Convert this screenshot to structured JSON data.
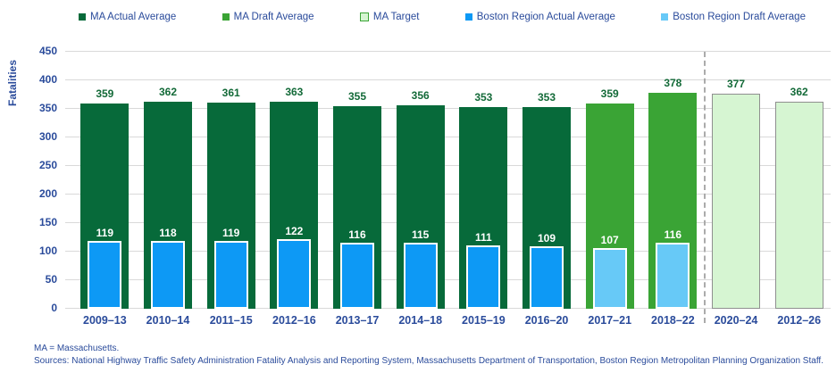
{
  "colors": {
    "ma_actual": "#076A3A",
    "ma_draft": "#3AA435",
    "ma_target_fill": "#D6F5D2",
    "ma_target_border": "#8F8F8F",
    "boston_actual": "#0D99F5",
    "boston_draft": "#67C9F7",
    "axis_text": "#2A4B9B",
    "ma_label_text": "#136A38",
    "boston_label_text": "#FFFFFF",
    "gridline": "#D9D9D9",
    "divider": "#ABABAB"
  },
  "legend": {
    "items": [
      {
        "label": "MA Actual Average",
        "swatch": "ma_actual"
      },
      {
        "label": "MA Draft Average",
        "swatch": "ma_draft"
      },
      {
        "label": "MA Target",
        "swatch": "ma_target"
      },
      {
        "label": "Boston Region Actual Average",
        "swatch": "boston_actual"
      },
      {
        "label": "Boston Region Draft Average",
        "swatch": "boston_draft"
      }
    ]
  },
  "chart_data": {
    "type": "bar",
    "title": "",
    "ylabel": "Fatalities",
    "xlabel": "",
    "ylim": [
      0,
      450
    ],
    "ytick_step": 50,
    "grid": true,
    "legend_position": "top",
    "categories": [
      "2009–13",
      "2010–14",
      "2011–15",
      "2012–16",
      "2013–17",
      "2014–18",
      "2015–19",
      "2016–20",
      "2017–21",
      "2018–22",
      "2020–24",
      "2012–26"
    ],
    "series": [
      {
        "name": "MA Average",
        "values": [
          359,
          362,
          361,
          363,
          355,
          356,
          353,
          353,
          359,
          378,
          377,
          362
        ],
        "bar_styles": [
          "actual",
          "actual",
          "actual",
          "actual",
          "actual",
          "actual",
          "actual",
          "actual",
          "draft",
          "draft",
          "target",
          "target"
        ]
      },
      {
        "name": "Boston Region Average",
        "values": [
          119,
          118,
          119,
          122,
          116,
          115,
          111,
          109,
          107,
          116,
          null,
          null
        ],
        "bar_styles": [
          "actual",
          "actual",
          "actual",
          "actual",
          "actual",
          "actual",
          "actual",
          "actual",
          "draft",
          "draft",
          null,
          null
        ]
      }
    ],
    "divider_after_category": "2018–22"
  },
  "footnotes": {
    "line1": "MA = Massachusetts.",
    "line2": "Sources: National Highway Traffic Safety Administration Fatality Analysis and Reporting System, Massachusetts Department of Transportation, Boston Region Metropolitan Planning Organization Staff."
  }
}
